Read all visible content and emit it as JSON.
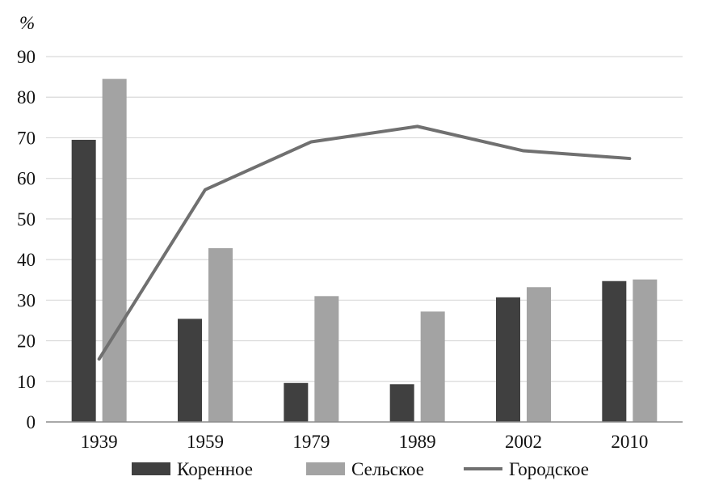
{
  "chart_data": {
    "type": "bar",
    "ylabel": "%",
    "ylim": [
      0,
      90
    ],
    "yticks": [
      0,
      10,
      20,
      30,
      40,
      50,
      60,
      70,
      80,
      90
    ],
    "categories": [
      "1939",
      "1959",
      "1979",
      "1989",
      "2002",
      "2010"
    ],
    "grid": true,
    "legend_position": "bottom",
    "series": [
      {
        "name": "Коренное",
        "kind": "bar",
        "color": "#404040",
        "values": [
          69.5,
          25.4,
          9.6,
          9.3,
          30.7,
          34.7
        ]
      },
      {
        "name": "Сельское",
        "kind": "bar",
        "color": "#a3a3a3",
        "values": [
          84.5,
          42.8,
          31.0,
          27.2,
          33.2,
          35.1
        ]
      },
      {
        "name": "Городское",
        "kind": "line",
        "color": "#707070",
        "values": [
          15.5,
          57.2,
          69.0,
          72.8,
          66.8,
          64.9
        ]
      }
    ]
  }
}
